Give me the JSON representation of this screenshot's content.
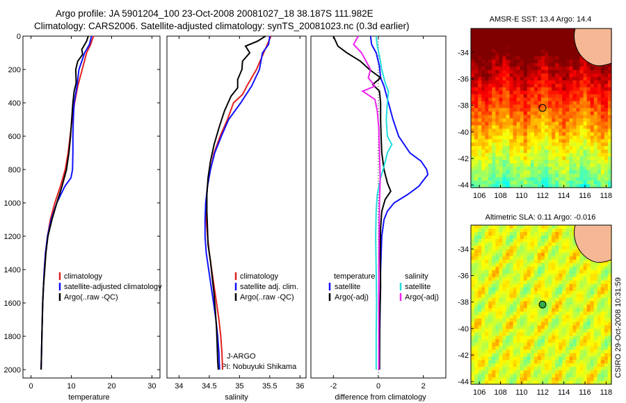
{
  "header": {
    "line1": "Argo profile: JA 5901204_100 23-Oct-2008 20081027_18 38.187S 111.982E",
    "line2": "Climatology: CARS2006. Satellite-adjusted climatology: synTS_20081023.nc (0.3d earlier)"
  },
  "side_label": "CSIRO 29-Oct-2008 10:31:59",
  "colors": {
    "climatology": "#e02020",
    "satellite": "#1010ff",
    "argo": "#000000",
    "salinity_satellite": "#22dddd",
    "salinity_argo": "#ee22ee"
  },
  "chart_data": [
    {
      "type": "line",
      "xlabel": "temperature",
      "xlim": [
        -2,
        32
      ],
      "ylim": [
        2050,
        0
      ],
      "xticks": [
        0,
        10,
        20,
        30
      ],
      "yticks": [
        0,
        200,
        400,
        600,
        800,
        1000,
        1200,
        1400,
        1600,
        1800,
        2000
      ],
      "legend_position": "center-left",
      "series": [
        {
          "name": "climatology",
          "color": "#e02020",
          "points": [
            [
              15.5,
              0
            ],
            [
              14.8,
              50
            ],
            [
              13.8,
              100
            ],
            [
              12.7,
              200
            ],
            [
              11.6,
              300
            ],
            [
              10.8,
              400
            ],
            [
              10.2,
              500
            ],
            [
              9.7,
              600
            ],
            [
              9.2,
              700
            ],
            [
              8.5,
              800
            ],
            [
              7.3,
              900
            ],
            [
              5.9,
              1000
            ],
            [
              4.8,
              1100
            ],
            [
              4.1,
              1200
            ],
            [
              3.6,
              1300
            ],
            [
              3.3,
              1400
            ],
            [
              3.1,
              1500
            ],
            [
              2.9,
              1600
            ],
            [
              2.8,
              1700
            ],
            [
              2.7,
              1800
            ],
            [
              2.6,
              1900
            ],
            [
              2.5,
              2000
            ]
          ]
        },
        {
          "name": "satellite-adjusted climatology",
          "color": "#1010ff",
          "points": [
            [
              15.0,
              0
            ],
            [
              14.5,
              50
            ],
            [
              13.3,
              100
            ],
            [
              11.9,
              200
            ],
            [
              11.4,
              300
            ],
            [
              10.7,
              400
            ],
            [
              10.5,
              500
            ],
            [
              10.4,
              600
            ],
            [
              10.4,
              700
            ],
            [
              10.3,
              800
            ],
            [
              9.9,
              850
            ],
            [
              8.4,
              900
            ],
            [
              6.4,
              1000
            ],
            [
              5.0,
              1100
            ],
            [
              4.1,
              1200
            ],
            [
              3.6,
              1300
            ],
            [
              3.3,
              1400
            ],
            [
              3.1,
              1500
            ],
            [
              2.9,
              1600
            ],
            [
              2.8,
              1700
            ],
            [
              2.7,
              1800
            ],
            [
              2.6,
              1900
            ],
            [
              2.5,
              2000
            ]
          ]
        },
        {
          "name": "Argo(..raw -QC)",
          "color": "#000000",
          "points": [
            [
              14.2,
              0
            ],
            [
              13.8,
              30
            ],
            [
              12.6,
              80
            ],
            [
              12.8,
              110
            ],
            [
              11.6,
              150
            ],
            [
              11.1,
              200
            ],
            [
              11.2,
              280
            ],
            [
              10.7,
              330
            ],
            [
              10.4,
              400
            ],
            [
              10.1,
              500
            ],
            [
              9.8,
              600
            ],
            [
              9.4,
              700
            ],
            [
              8.8,
              800
            ],
            [
              7.7,
              900
            ],
            [
              6.4,
              1000
            ],
            [
              5.2,
              1100
            ],
            [
              4.2,
              1200
            ],
            [
              3.7,
              1300
            ],
            [
              3.4,
              1400
            ],
            [
              3.1,
              1500
            ],
            [
              2.9,
              1600
            ],
            [
              2.8,
              1700
            ],
            [
              2.7,
              1800
            ],
            [
              2.6,
              1900
            ],
            [
              2.5,
              2000
            ]
          ]
        }
      ],
      "legend": [
        "climatology",
        "satellite-adjusted climatology",
        "Argo(..raw -QC)"
      ]
    },
    {
      "type": "line",
      "xlabel": "salinity",
      "xlim": [
        33.8,
        36.1
      ],
      "ylim": [
        2050,
        0
      ],
      "xticks": [
        34,
        34.5,
        35,
        35.5,
        36
      ],
      "yticks": [],
      "legend_position": "center",
      "annotation": [
        "J-ARGO",
        "PI: Nobuyuki Shikama"
      ],
      "series": [
        {
          "name": "climatology",
          "color": "#e02020",
          "points": [
            [
              35.52,
              0
            ],
            [
              35.46,
              50
            ],
            [
              35.4,
              100
            ],
            [
              35.28,
              200
            ],
            [
              35.12,
              300
            ],
            [
              35.05,
              350
            ],
            [
              34.9,
              400
            ],
            [
              34.8,
              500
            ],
            [
              34.68,
              600
            ],
            [
              34.58,
              700
            ],
            [
              34.52,
              800
            ],
            [
              34.47,
              900
            ],
            [
              34.45,
              1000
            ],
            [
              34.45,
              1100
            ],
            [
              34.47,
              1200
            ],
            [
              34.5,
              1300
            ],
            [
              34.54,
              1400
            ],
            [
              34.58,
              1500
            ],
            [
              34.62,
              1600
            ],
            [
              34.66,
              1700
            ],
            [
              34.69,
              1800
            ],
            [
              34.71,
              1900
            ],
            [
              34.72,
              2000
            ]
          ]
        },
        {
          "name": "satellite adj. clim.",
          "color": "#1010ff",
          "points": [
            [
              35.5,
              0
            ],
            [
              35.48,
              50
            ],
            [
              35.38,
              100
            ],
            [
              35.33,
              200
            ],
            [
              35.2,
              300
            ],
            [
              35.02,
              400
            ],
            [
              34.82,
              500
            ],
            [
              34.7,
              600
            ],
            [
              34.59,
              700
            ],
            [
              34.52,
              800
            ],
            [
              34.47,
              900
            ],
            [
              34.44,
              1000
            ],
            [
              34.43,
              1100
            ],
            [
              34.43,
              1200
            ],
            [
              34.45,
              1300
            ],
            [
              34.49,
              1400
            ],
            [
              34.53,
              1500
            ],
            [
              34.57,
              1600
            ],
            [
              34.61,
              1700
            ],
            [
              34.64,
              1800
            ],
            [
              34.66,
              1900
            ],
            [
              34.67,
              2000
            ]
          ]
        },
        {
          "name": "Argo(..raw -QC)",
          "color": "#000000",
          "points": [
            [
              35.43,
              0
            ],
            [
              35.3,
              30
            ],
            [
              35.1,
              60
            ],
            [
              35.17,
              100
            ],
            [
              35.05,
              150
            ],
            [
              35.04,
              200
            ],
            [
              34.97,
              260
            ],
            [
              34.97,
              310
            ],
            [
              34.86,
              360
            ],
            [
              34.75,
              450
            ],
            [
              34.66,
              550
            ],
            [
              34.58,
              650
            ],
            [
              34.52,
              750
            ],
            [
              34.48,
              850
            ],
            [
              34.46,
              950
            ],
            [
              34.46,
              1050
            ],
            [
              34.47,
              1150
            ],
            [
              34.48,
              1250
            ],
            [
              34.52,
              1350
            ],
            [
              34.55,
              1450
            ],
            [
              34.58,
              1550
            ],
            [
              34.6,
              1650
            ],
            [
              34.62,
              1750
            ],
            [
              34.63,
              1850
            ],
            [
              34.64,
              1950
            ],
            [
              34.65,
              2000
            ]
          ]
        }
      ],
      "legend": [
        "climatology",
        "satellite adj. clim.",
        "Argo(..raw -QC)"
      ]
    },
    {
      "type": "line",
      "xlabel": "difference from climatology",
      "xlim": [
        -3.0,
        3.0
      ],
      "ylim": [
        2050,
        0
      ],
      "xticks": [
        -2,
        0,
        2
      ],
      "yticks": [],
      "legend_position": "center",
      "legend_headers": [
        "temperature",
        "salinity"
      ],
      "series": [
        {
          "name": "satellite",
          "group": "temperature",
          "color": "#1010ff",
          "points": [
            [
              -0.35,
              0
            ],
            [
              -0.3,
              50
            ],
            [
              -0.1,
              100
            ],
            [
              0.05,
              180
            ],
            [
              0.1,
              250
            ],
            [
              0.25,
              300
            ],
            [
              0.45,
              400
            ],
            [
              0.65,
              500
            ],
            [
              0.9,
              600
            ],
            [
              1.4,
              700
            ],
            [
              1.9,
              750
            ],
            [
              2.15,
              800
            ],
            [
              2.2,
              830
            ],
            [
              1.8,
              900
            ],
            [
              1.3,
              950
            ],
            [
              0.7,
              1000
            ],
            [
              0.4,
              1050
            ],
            [
              0.25,
              1100
            ],
            [
              0.15,
              1200
            ],
            [
              0.1,
              1400
            ],
            [
              0.08,
              1600
            ],
            [
              0.06,
              1800
            ],
            [
              0.05,
              2000
            ]
          ]
        },
        {
          "name": "Argo(-adj)",
          "group": "temperature",
          "color": "#000000",
          "points": [
            [
              -2.0,
              0
            ],
            [
              -1.8,
              60
            ],
            [
              -1.4,
              100
            ],
            [
              -0.8,
              150
            ],
            [
              -0.4,
              200
            ],
            [
              0.1,
              250
            ],
            [
              -0.25,
              290
            ],
            [
              0.05,
              330
            ],
            [
              0.1,
              400
            ],
            [
              0.1,
              500
            ],
            [
              0.12,
              600
            ],
            [
              0.15,
              700
            ],
            [
              0.25,
              800
            ],
            [
              0.4,
              880
            ],
            [
              0.55,
              930
            ],
            [
              0.3,
              980
            ],
            [
              0.15,
              1050
            ],
            [
              0.1,
              1150
            ],
            [
              0.08,
              1300
            ],
            [
              0.1,
              1500
            ],
            [
              0.06,
              1700
            ],
            [
              0.05,
              1900
            ],
            [
              0.05,
              2000
            ]
          ]
        },
        {
          "name": "satellite",
          "group": "salinity",
          "color": "#22dddd",
          "points": [
            [
              -0.1,
              0
            ],
            [
              -0.05,
              60
            ],
            [
              0.05,
              120
            ],
            [
              0.15,
              200
            ],
            [
              0.3,
              280
            ],
            [
              0.45,
              330
            ],
            [
              0.4,
              400
            ],
            [
              0.35,
              500
            ],
            [
              0.4,
              600
            ],
            [
              0.6,
              650
            ],
            [
              0.4,
              700
            ],
            [
              0.25,
              780
            ],
            [
              0.1,
              850
            ],
            [
              -0.05,
              950
            ],
            [
              -0.1,
              1050
            ],
            [
              -0.12,
              1200
            ],
            [
              -0.1,
              1400
            ],
            [
              -0.08,
              1600
            ],
            [
              -0.1,
              1800
            ],
            [
              -0.1,
              2000
            ]
          ]
        },
        {
          "name": "Argo(-adj)",
          "group": "salinity",
          "color": "#ee22ee",
          "points": [
            [
              -0.9,
              0
            ],
            [
              -1.1,
              50
            ],
            [
              -0.75,
              100
            ],
            [
              -0.35,
              200
            ],
            [
              -0.45,
              250
            ],
            [
              -0.15,
              300
            ],
            [
              -0.7,
              330
            ],
            [
              -0.15,
              380
            ],
            [
              -0.05,
              450
            ],
            [
              0.02,
              550
            ],
            [
              0.05,
              700
            ],
            [
              0.08,
              850
            ],
            [
              0.05,
              1000
            ],
            [
              0.03,
              1200
            ],
            [
              0.02,
              1400
            ],
            [
              0.02,
              1600
            ],
            [
              0.02,
              1800
            ],
            [
              0.02,
              2000
            ]
          ]
        }
      ]
    },
    {
      "type": "heatmap",
      "title": "AMSR-E SST: 13.4 Argo: 14.4",
      "xlim": [
        105.2,
        118.5
      ],
      "ylim": [
        -44.2,
        -32.2
      ],
      "xticks": [
        106,
        108,
        110,
        112,
        114,
        116,
        118
      ],
      "yticks": [
        -34,
        -36,
        -38,
        -40,
        -42,
        -44
      ],
      "argo_position": {
        "lon": 111.98,
        "lat": -38.19
      }
    },
    {
      "type": "heatmap",
      "title": "Altimetric SLA: 0.11 Argo: -0.016",
      "xlim": [
        105.2,
        118.5
      ],
      "ylim": [
        -44.2,
        -32.2
      ],
      "xticks": [
        106,
        108,
        110,
        112,
        114,
        116,
        118
      ],
      "yticks": [
        -34,
        -36,
        -38,
        -40,
        -42,
        -44
      ],
      "argo_position": {
        "lon": 111.98,
        "lat": -38.19
      }
    }
  ]
}
